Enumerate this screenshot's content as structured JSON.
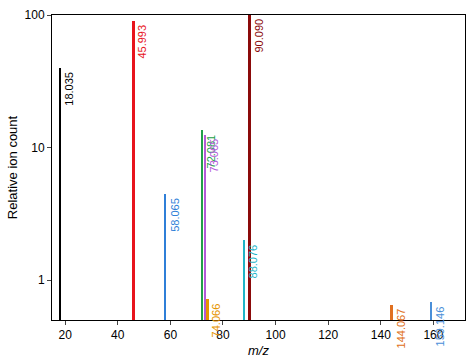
{
  "chart_data": {
    "type": "bar",
    "x_label": "m/z",
    "y_label": "Relative ion count",
    "x": [
      18.035,
      45.993,
      58.065,
      72.081,
      73.065,
      74.066,
      88.076,
      90.09,
      144.067,
      159.146
    ],
    "values": [
      40,
      90,
      4.5,
      13.5,
      12.5,
      0.72,
      2,
      100,
      0.65,
      0.68
    ],
    "annotations": [
      "18.035",
      "45.993",
      "58.065",
      "72.081",
      "73.065",
      "74.066",
      "88.076",
      "90.090",
      "144.067",
      "159.146"
    ],
    "colors": [
      "#000000",
      "#e8141c",
      "#2f7fd8",
      "#22a04a",
      "#b45ad8",
      "#e69500",
      "#1fb5c8",
      "#8b0a0a",
      "#e07020",
      "#4a8fd9"
    ],
    "xlim": [
      15,
      172
    ],
    "xticks": [
      20,
      40,
      60,
      80,
      100,
      120,
      140,
      160
    ],
    "ylim": [
      0.5,
      100
    ],
    "yticks": [
      1,
      10,
      100
    ],
    "log": "y",
    "grid": false
  }
}
